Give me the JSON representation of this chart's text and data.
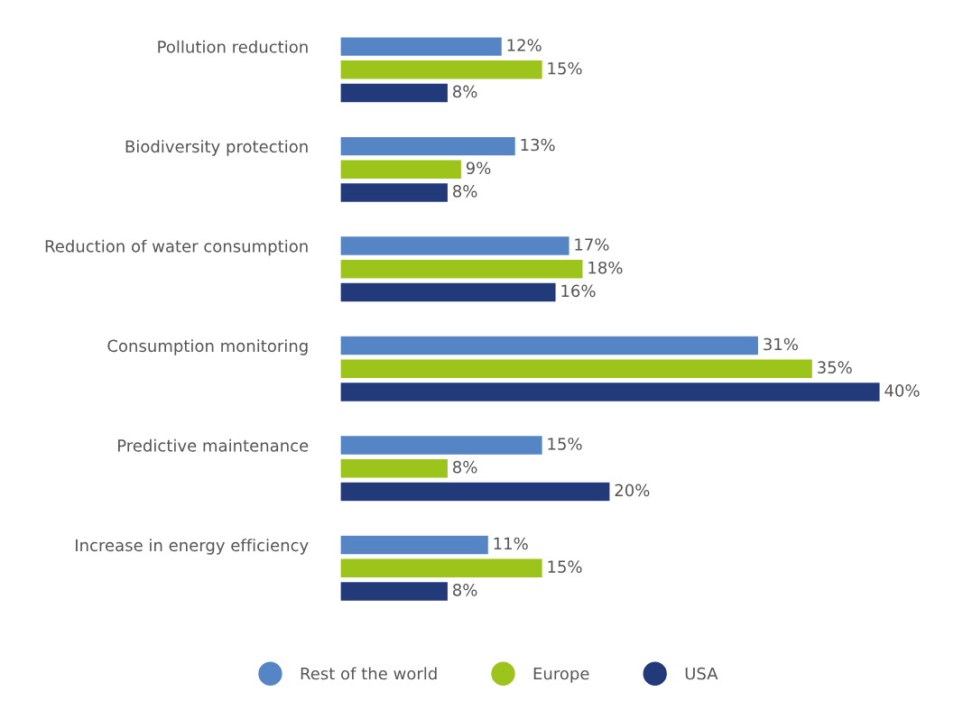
{
  "chart_data": {
    "type": "bar",
    "orientation": "horizontal",
    "categories": [
      "Pollution reduction",
      "Biodiversity protection",
      "Reduction of water consumption",
      "Consumption monitoring",
      "Predictive maintenance",
      "Increase in energy efficiency"
    ],
    "series": [
      {
        "name": "Rest of the world",
        "color": "#5585c5",
        "values": [
          12,
          13,
          17,
          31,
          15,
          11
        ],
        "value_labels": [
          "12%",
          "13%",
          "17%",
          "31%",
          "15%",
          "11%"
        ]
      },
      {
        "name": "Europe",
        "color": "#9dc41a",
        "values": [
          15,
          9,
          18,
          35,
          8,
          15
        ],
        "value_labels": [
          "15%",
          "9%",
          "18%",
          "35%",
          "8%",
          "15%"
        ]
      },
      {
        "name": "USA",
        "color": "#233a7a",
        "values": [
          8,
          8,
          16,
          40,
          20,
          8
        ],
        "value_labels": [
          "8%",
          "8%",
          "16%",
          "40%",
          "20%",
          "8%"
        ]
      }
    ],
    "legend": "bottom",
    "grid": false
  }
}
